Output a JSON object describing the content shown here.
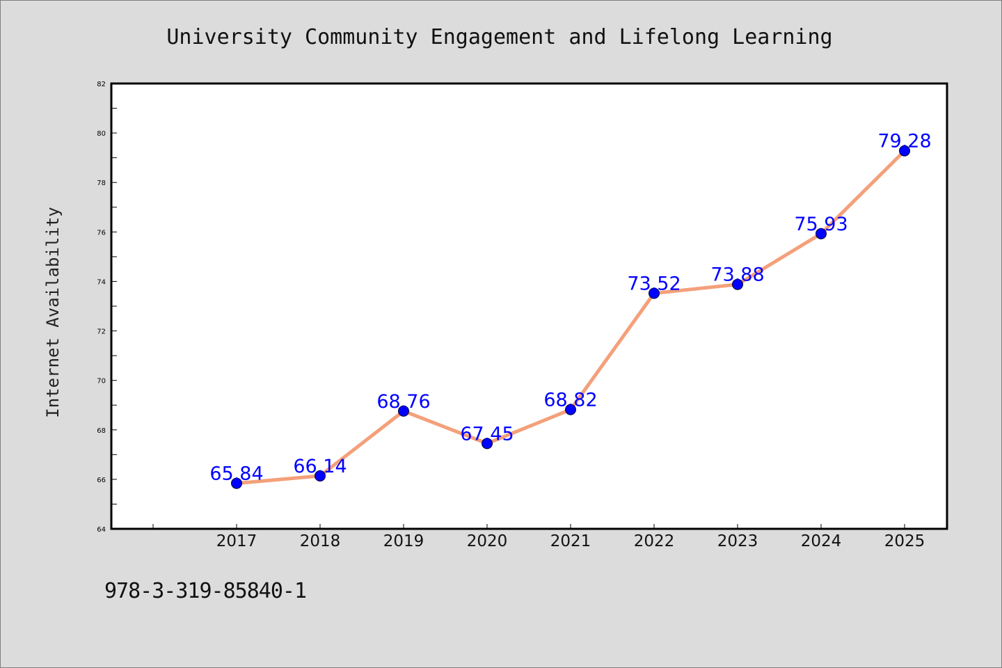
{
  "chart_data": {
    "type": "line",
    "title": "University Community Engagement and Lifelong Learning",
    "xlabel": "",
    "ylabel": "Internet Availability",
    "categories": [
      "2017",
      "2018",
      "2019",
      "2020",
      "2021",
      "2022",
      "2023",
      "2024",
      "2025"
    ],
    "series": [
      {
        "values": [
          65.84,
          66.14,
          68.76,
          67.45,
          68.82,
          73.52,
          73.88,
          75.93,
          79.28
        ],
        "line_color": "#f4a07a",
        "marker_color": "#0000ff"
      }
    ],
    "data_labels": [
      "65.84",
      "66.14",
      "68.76",
      "67.45",
      "68.82",
      "73.52",
      "73.88",
      "75.93",
      "79.28"
    ],
    "ylim": [
      64,
      82
    ],
    "yticks": [
      "64",
      "66",
      "68",
      "70",
      "72",
      "74",
      "76",
      "78",
      "80",
      "82"
    ],
    "grid": false,
    "legend": "none",
    "label_color": "#0000ff"
  },
  "footer": {
    "isbn": "978-3-319-85840-1"
  }
}
